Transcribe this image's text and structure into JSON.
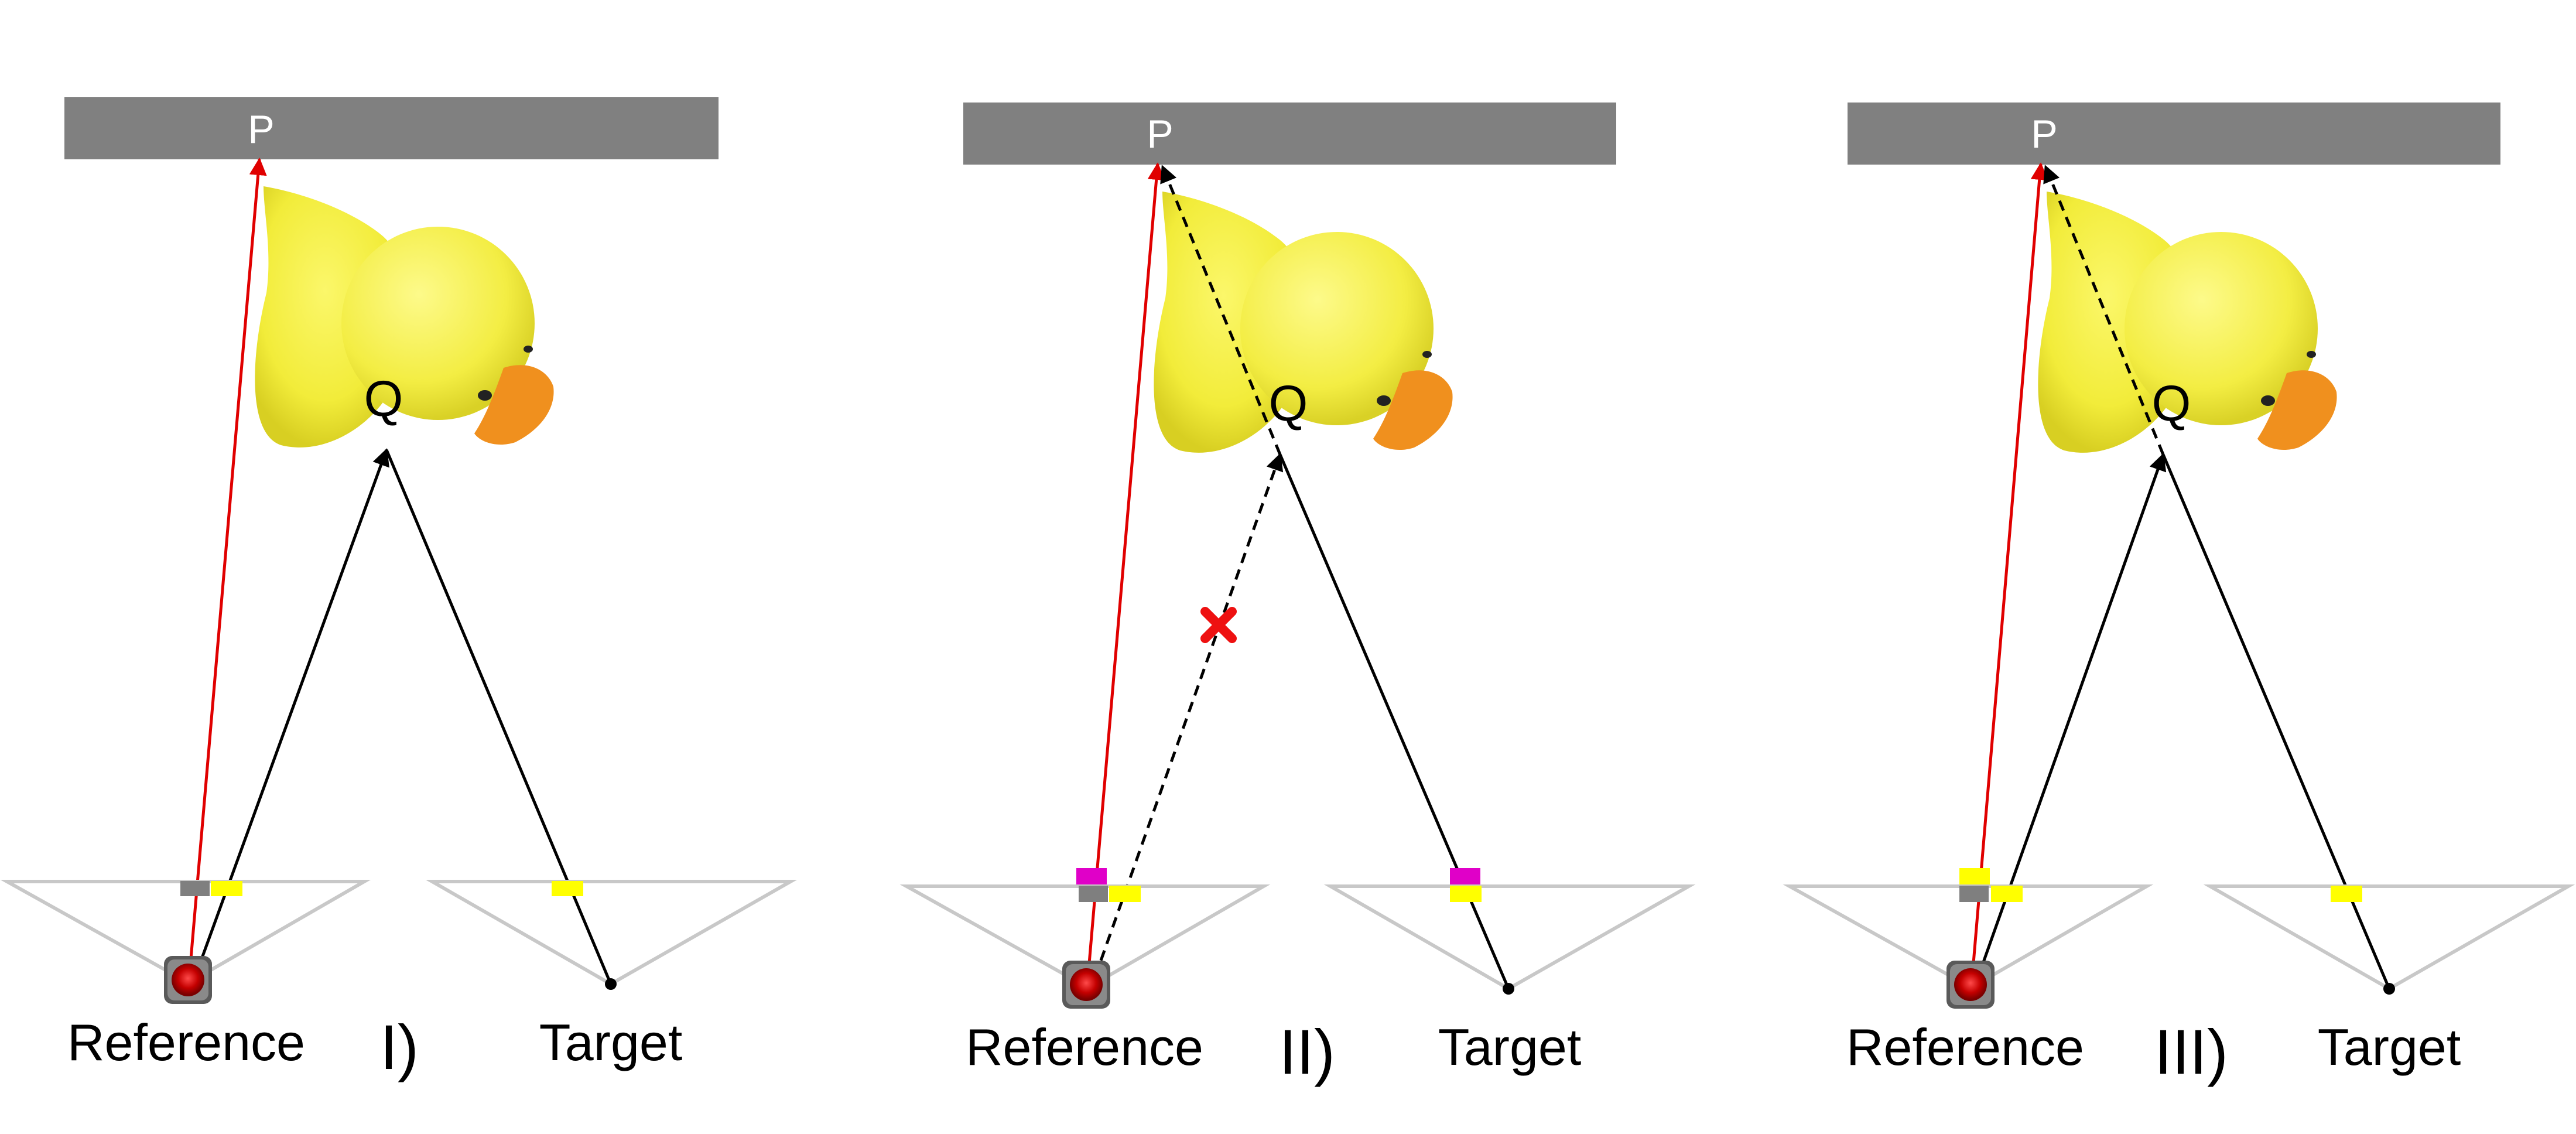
{
  "panels": [
    {
      "id": "panel-1",
      "roman": "I)",
      "plane_label": "P",
      "point_label": "Q",
      "reference_label": "Reference",
      "target_label": "Target",
      "occluded": false
    },
    {
      "id": "panel-2",
      "roman": "II)",
      "plane_label": "P",
      "point_label": "Q",
      "reference_label": "Reference",
      "target_label": "Target",
      "occluded": true
    },
    {
      "id": "panel-3",
      "roman": "III)",
      "plane_label": "P",
      "point_label": "Q",
      "reference_label": "Reference",
      "target_label": "Target",
      "occluded": false
    }
  ],
  "colors": {
    "plane": "#808080",
    "ray_red": "#e00000",
    "ray_black": "#000000",
    "camera_frustum": "#c8c8c8",
    "pixel_yellow": "#ffff00",
    "pixel_gray": "#7f7f7f",
    "pixel_magenta": "#e000c8",
    "duck_body": "#f2ec3a",
    "duck_beak": "#f0901e",
    "cross": "#ee1111"
  },
  "icons": {
    "occlusion_mark": "red-x-icon",
    "reference_camera": "camera-icon"
  }
}
